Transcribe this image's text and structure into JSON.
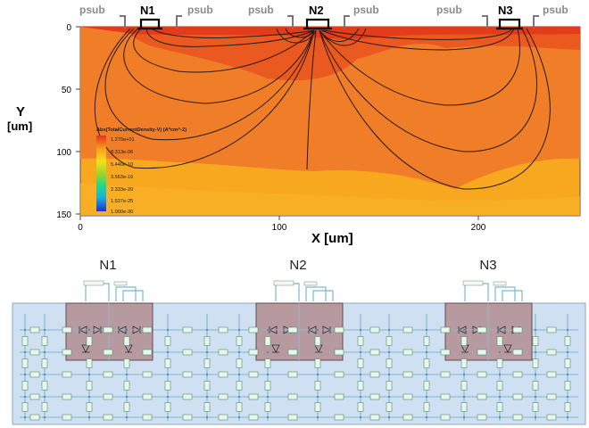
{
  "simulation": {
    "top_labels": {
      "psub_1": "psub",
      "psub_2": "psub",
      "psub_3": "psub",
      "psub_4": "psub",
      "psub_5": "psub",
      "psub_6": "psub",
      "n1": "N1",
      "n2": "N2",
      "n3": "N3"
    },
    "y_axis": {
      "title_1": "Y",
      "title_2": "[um]",
      "ticks": [
        "0",
        "50",
        "100",
        "150"
      ]
    },
    "x_axis": {
      "title": "X [um]",
      "ticks": [
        "0",
        "100",
        "200"
      ]
    },
    "legend": {
      "title": "Abs(TotalCurrentDensity-V) (A*cm^-2)",
      "entries": [
        "1.270e+01",
        "8.313e-06",
        "5.440e-10",
        "3.563e-16",
        "2.333e-20",
        "1.527e-25",
        "1.000e-30"
      ],
      "colors": [
        "#e8321c",
        "#f7a21b",
        "#f4e01a",
        "#9ed526",
        "#1fd98a",
        "#1aaee0",
        "#2030c8"
      ]
    },
    "colors": {
      "top_layer": "#e23c1a",
      "upper_region": "#ea5a20",
      "middle_region": "#f07d28",
      "bottom_region": "#f7a81f",
      "contours": "#2a1a10"
    }
  },
  "circuit": {
    "labels": {
      "n1": "N1",
      "n2": "N2",
      "n3": "N3"
    },
    "colors": {
      "panel": "#cfe0f2",
      "wire": "#7fb6cc",
      "box_fill": "#b79aa0",
      "box_border": "#6a4852",
      "resistor": "#e6f7ec"
    }
  }
}
